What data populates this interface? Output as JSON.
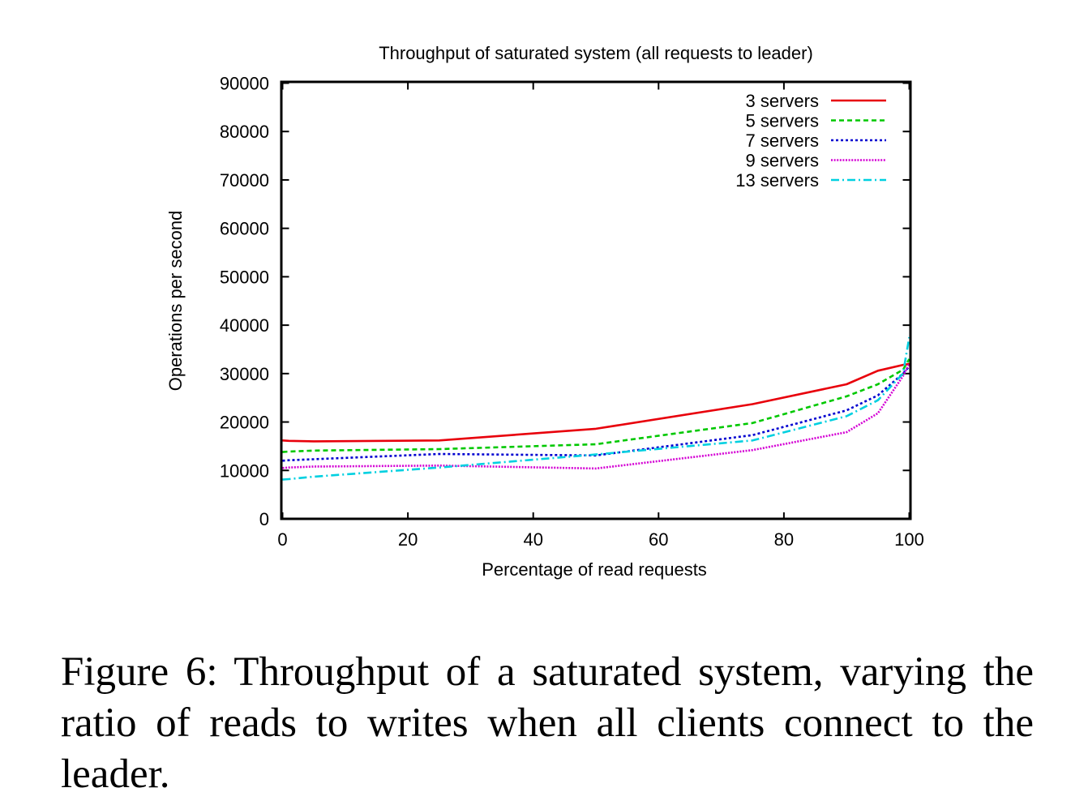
{
  "chart_data": {
    "type": "line",
    "title": "Throughput of saturated system (all requests to leader)",
    "xlabel": "Percentage of read requests",
    "ylabel": "Operations per second",
    "xlim": [
      0,
      100
    ],
    "ylim": [
      0,
      90000
    ],
    "xticks": [
      "0",
      "20",
      "40",
      "60",
      "80",
      "100"
    ],
    "yticks": [
      "0",
      "10000",
      "20000",
      "30000",
      "40000",
      "50000",
      "60000",
      "70000",
      "80000",
      "90000"
    ],
    "grid": false,
    "legend_position": "top-right",
    "series": [
      {
        "name": "3 servers",
        "color": "#e8000b",
        "dash": "solid",
        "x": [
          0,
          1,
          5,
          25,
          50,
          75,
          90,
          95,
          99,
          100
        ],
        "values": [
          16200,
          16100,
          16000,
          16200,
          18600,
          23700,
          27800,
          30600,
          31800,
          32000
        ]
      },
      {
        "name": "5 servers",
        "color": "#00c800",
        "dash": "dashed",
        "x": [
          0,
          1,
          5,
          25,
          50,
          75,
          90,
          95,
          99,
          100
        ],
        "values": [
          13800,
          13900,
          14100,
          14400,
          15400,
          19800,
          25300,
          27800,
          30800,
          33000
        ]
      },
      {
        "name": "7 servers",
        "color": "#0000d0",
        "dash": "dotted",
        "x": [
          0,
          1,
          5,
          25,
          50,
          75,
          90,
          95,
          99,
          100
        ],
        "values": [
          12000,
          12100,
          12300,
          13400,
          13100,
          17300,
          22400,
          25500,
          30000,
          31500
        ]
      },
      {
        "name": "9 servers",
        "color": "#d400d4",
        "dash": "dense-dotted",
        "x": [
          0,
          1,
          5,
          25,
          50,
          75,
          90,
          95,
          99,
          100
        ],
        "values": [
          10500,
          10600,
          10800,
          11000,
          10400,
          14200,
          17900,
          21800,
          29500,
          32000
        ]
      },
      {
        "name": "13 servers",
        "color": "#00d0e0",
        "dash": "dash-dot",
        "x": [
          0,
          1,
          5,
          25,
          50,
          75,
          90,
          95,
          99,
          100
        ],
        "values": [
          8100,
          8200,
          8700,
          10600,
          13300,
          16200,
          21200,
          24500,
          30000,
          37500
        ]
      }
    ]
  },
  "caption": "Figure 6: Throughput of a saturated system, varying the ratio of reads to writes when all clients connect to the leader."
}
